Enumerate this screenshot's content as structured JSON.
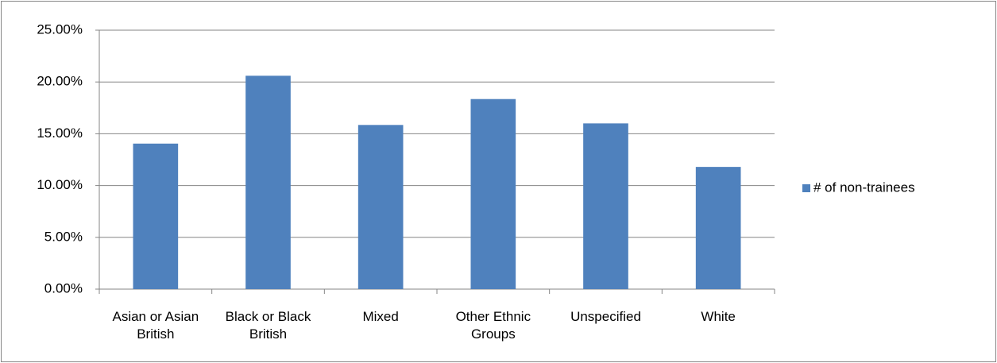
{
  "chart_data": {
    "type": "bar",
    "categories": [
      "Asian or Asian British",
      "Black or Black British",
      "Mixed",
      "Other Ethnic Groups",
      "Unspecified",
      "White"
    ],
    "series": [
      {
        "name": "# of non-trainees",
        "color": "#4f81bd",
        "values": [
          14.05,
          20.6,
          15.85,
          18.35,
          16.0,
          11.8
        ]
      }
    ],
    "ylim": [
      0,
      25
    ],
    "yticks": [
      {
        "value": 0,
        "label": "0.00%"
      },
      {
        "value": 5,
        "label": "5.00%"
      },
      {
        "value": 10,
        "label": "10.00%"
      },
      {
        "value": 15,
        "label": "15.00%"
      },
      {
        "value": 20,
        "label": "20.00%"
      },
      {
        "value": 25,
        "label": "25.00%"
      }
    ],
    "grid": true,
    "legend": "right"
  }
}
